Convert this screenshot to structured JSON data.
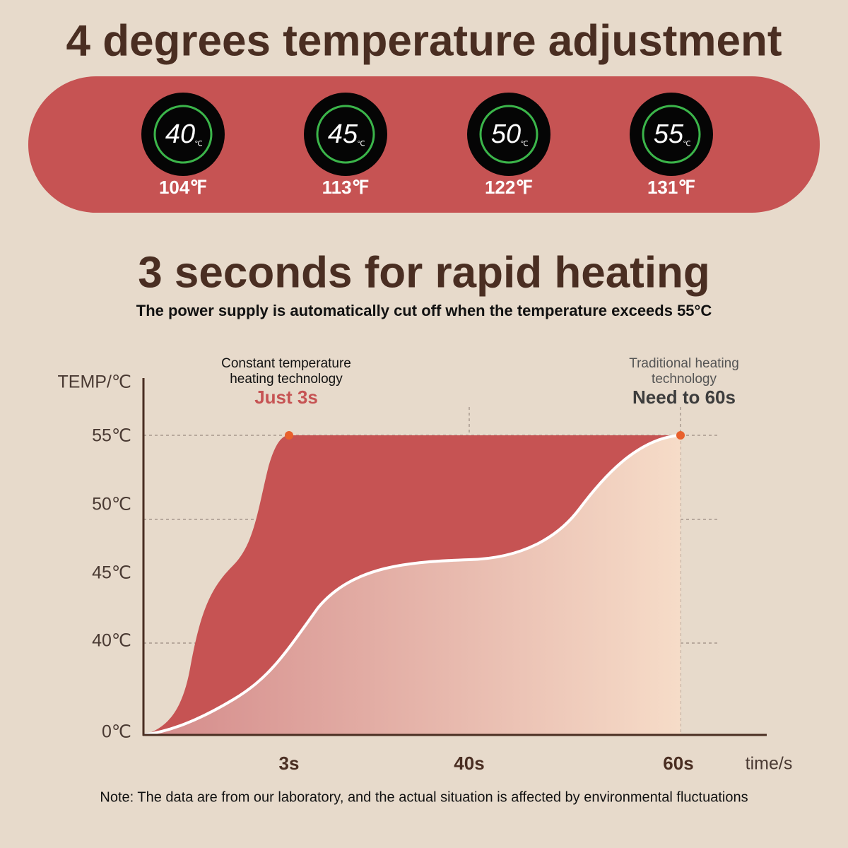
{
  "section1": {
    "title": "4 degrees temperature adjustment",
    "displays": [
      {
        "celsius": "40",
        "unit": "℃",
        "fahrenheit": "104℉"
      },
      {
        "celsius": "45",
        "unit": "℃",
        "fahrenheit": "113℉"
      },
      {
        "celsius": "50",
        "unit": "℃",
        "fahrenheit": "122℉"
      },
      {
        "celsius": "55",
        "unit": "℃",
        "fahrenheit": "131℉"
      }
    ]
  },
  "section2": {
    "title": "3 seconds for rapid heating",
    "subtitle": "The power supply is automatically cut off when the temperature exceeds 55°C"
  },
  "diagram": {
    "y_axis_label": "TEMP/℃",
    "y_labels": [
      "55℃",
      "50℃",
      "45℃",
      "40℃",
      "0℃"
    ],
    "x_labels": [
      "3s",
      "40s",
      "60s"
    ],
    "x_axis_label": "time/s",
    "callouts": [
      {
        "lines": [
          "Constant temperature",
          "heating technology"
        ],
        "highlight": "Just 3s"
      },
      {
        "lines": [
          "Traditional heating",
          "technology"
        ],
        "highlight": "Need to 60s"
      }
    ]
  },
  "note": "Note: The data are from our laboratory, and the actual situation is affected by environmental fluctuations"
}
